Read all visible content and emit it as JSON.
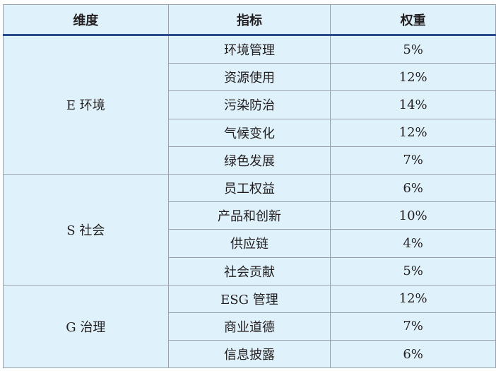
{
  "headers": [
    "维度",
    "指标",
    "权重"
  ],
  "groups": [
    {
      "dimension": "E 环境",
      "rows": [
        {
          "indicator": "环境管理",
          "weight": "5%"
        },
        {
          "indicator": "资源使用",
          "weight": "12%"
        },
        {
          "indicator": "污染防治",
          "weight": "14%"
        },
        {
          "indicator": "气候变化",
          "weight": "12%"
        },
        {
          "indicator": "绿色发展",
          "weight": "7%"
        }
      ]
    },
    {
      "dimension": "S 社会",
      "rows": [
        {
          "indicator": "员工权益",
          "weight": "6%"
        },
        {
          "indicator": "产品和创新",
          "weight": "10%"
        },
        {
          "indicator": "供应链",
          "weight": "4%"
        },
        {
          "indicator": "社会贡献",
          "weight": "5%"
        }
      ]
    },
    {
      "dimension": "G 治理",
      "rows": [
        {
          "indicator": "ESG 管理",
          "weight": "12%"
        },
        {
          "indicator": "商业道德",
          "weight": "7%"
        },
        {
          "indicator": "信息披露",
          "weight": "6%"
        }
      ]
    }
  ],
  "colors": {
    "background": "#dff1fb",
    "header_rule": "#2a4b8d",
    "grid": "#9aa3ab"
  }
}
